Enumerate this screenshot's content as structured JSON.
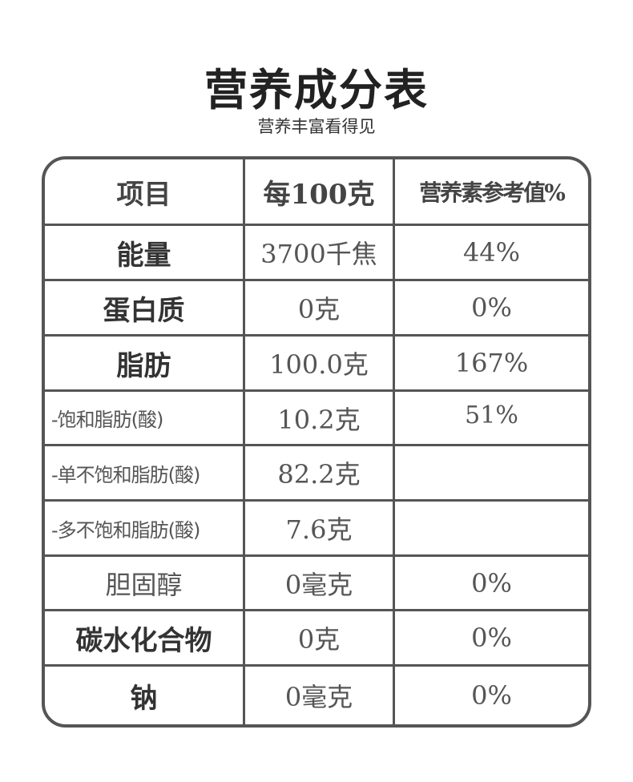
{
  "title": "营养成分表",
  "subtitle": "营养丰富看得见",
  "table": {
    "headers": [
      "项目",
      "每100克",
      "营养素参考值%"
    ],
    "rows": [
      {
        "item": "能量",
        "amount": "3700千焦",
        "nrv": "44%",
        "style": "bold"
      },
      {
        "item": "蛋白质",
        "amount": "0克",
        "nrv": "0%",
        "style": "bold"
      },
      {
        "item": "脂肪",
        "amount": "100.0克",
        "nrv": "167%",
        "style": "bold"
      },
      {
        "item": "-饱和脂肪(酸)",
        "amount": "10.2克",
        "nrv": "51%",
        "style": "sub"
      },
      {
        "item": "-单不饱和脂肪(酸)",
        "amount": "82.2克",
        "nrv": "",
        "style": "sub"
      },
      {
        "item": "-多不饱和脂肪(酸)",
        "amount": "7.6克",
        "nrv": "",
        "style": "sub"
      },
      {
        "item": "胆固醇",
        "amount": "0毫克",
        "nrv": "0%",
        "style": "light"
      },
      {
        "item": "碳水化合物",
        "amount": "0克",
        "nrv": "0%",
        "style": "bold"
      },
      {
        "item": "钠",
        "amount": "0毫克",
        "nrv": "0%",
        "style": "bold"
      }
    ]
  }
}
